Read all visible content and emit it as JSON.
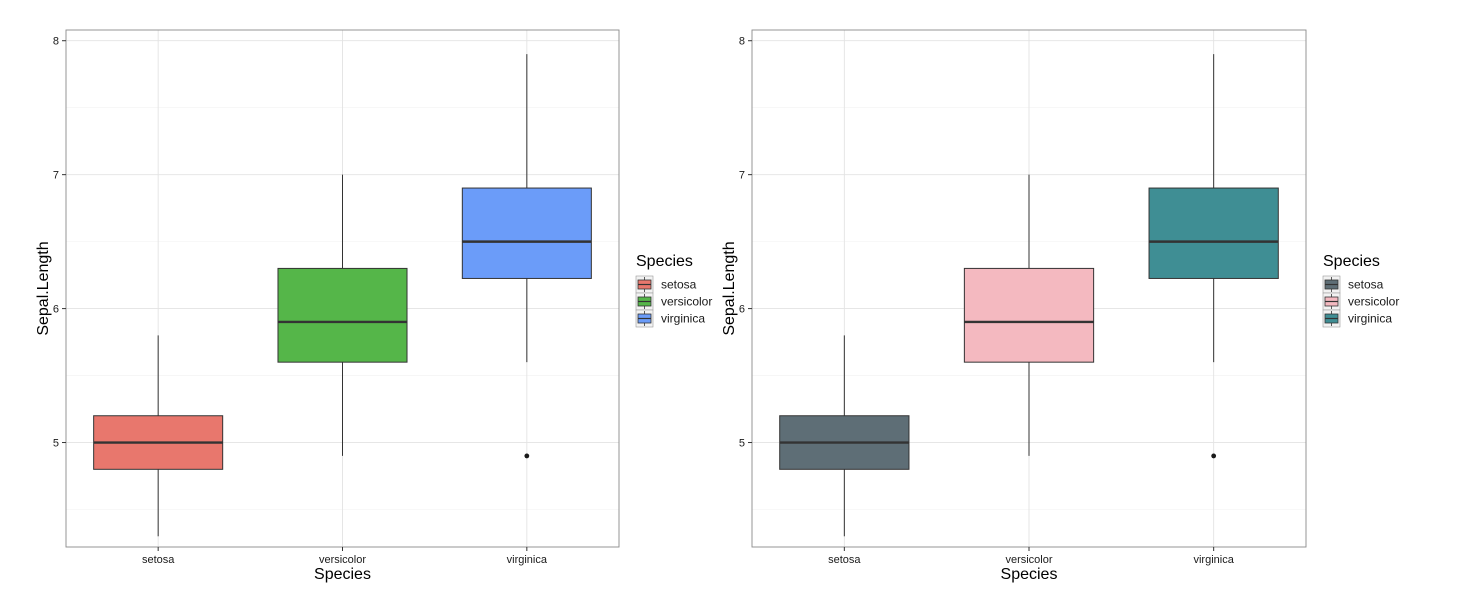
{
  "chart_data": [
    {
      "type": "boxplot",
      "xlabel": "Species",
      "ylabel": "Sepal.Length",
      "categories": [
        "setosa",
        "versicolor",
        "virginica"
      ],
      "ylim": [
        4.22,
        8.08
      ],
      "yticks": [
        5,
        6,
        7,
        8
      ],
      "grid": true,
      "legend": {
        "title": "Species",
        "position": "right"
      },
      "series": [
        {
          "name": "setosa",
          "color": "#E8776D",
          "min": 4.3,
          "q1": 4.8,
          "median": 5.0,
          "q3": 5.2,
          "max": 5.8,
          "outliers": []
        },
        {
          "name": "versicolor",
          "color": "#55B649",
          "min": 4.9,
          "q1": 5.6,
          "median": 5.9,
          "q3": 6.3,
          "max": 7.0,
          "outliers": []
        },
        {
          "name": "virginica",
          "color": "#6B9CF9",
          "min": 5.6,
          "q1": 6.225,
          "median": 6.5,
          "q3": 6.9,
          "max": 7.9,
          "outliers": [
            4.9
          ]
        }
      ]
    },
    {
      "type": "boxplot",
      "xlabel": "Species",
      "ylabel": "Sepal.Length",
      "categories": [
        "setosa",
        "versicolor",
        "virginica"
      ],
      "ylim": [
        4.22,
        8.08
      ],
      "yticks": [
        5,
        6,
        7,
        8
      ],
      "grid": true,
      "legend": {
        "title": "Species",
        "position": "right"
      },
      "series": [
        {
          "name": "setosa",
          "color": "#5E6E76",
          "min": 4.3,
          "q1": 4.8,
          "median": 5.0,
          "q3": 5.2,
          "max": 5.8,
          "outliers": []
        },
        {
          "name": "versicolor",
          "color": "#F4B9C0",
          "min": 4.9,
          "q1": 5.6,
          "median": 5.9,
          "q3": 6.3,
          "max": 7.0,
          "outliers": []
        },
        {
          "name": "virginica",
          "color": "#3F8E94",
          "min": 5.6,
          "q1": 6.225,
          "median": 6.5,
          "q3": 6.9,
          "max": 7.9,
          "outliers": [
            4.9
          ]
        }
      ]
    }
  ]
}
